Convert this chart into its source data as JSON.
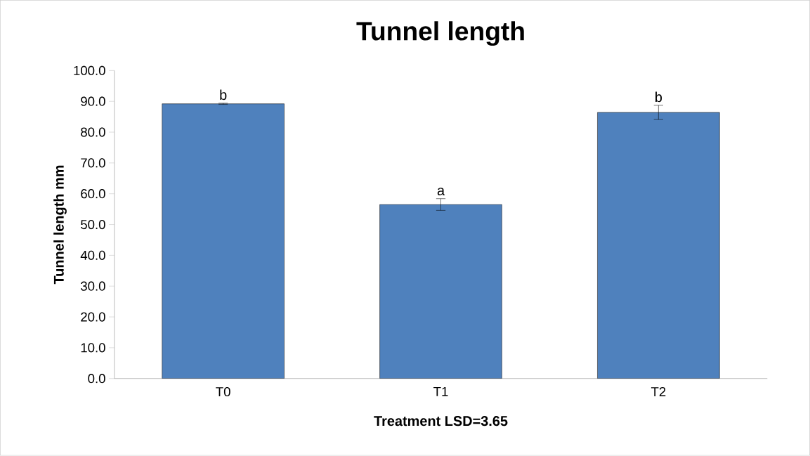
{
  "chart_data": {
    "type": "bar",
    "title": "Tunnel length",
    "xlabel": "Treatment LSD=3.65",
    "ylabel": "Tunnel  length mm",
    "categories": [
      "T0",
      "T1",
      "T2"
    ],
    "values": [
      89.2,
      56.5,
      86.4
    ],
    "errors": [
      0.2,
      1.9,
      2.3
    ],
    "value_labels": [
      "b",
      "a",
      "b"
    ],
    "color": "#4f81bd",
    "ylim": [
      0,
      100
    ],
    "yticks": [
      {
        "value": 0,
        "label": "0.0"
      },
      {
        "value": 10,
        "label": "10.0"
      },
      {
        "value": 20,
        "label": "20.0"
      },
      {
        "value": 30,
        "label": "30.0"
      },
      {
        "value": 40,
        "label": "40.0"
      },
      {
        "value": 50,
        "label": "50.0"
      },
      {
        "value": 60,
        "label": "60.0"
      },
      {
        "value": 70,
        "label": "70.0"
      },
      {
        "value": 80,
        "label": "80.0"
      },
      {
        "value": 90,
        "label": "90.0"
      },
      {
        "value": 100,
        "label": "100.0"
      }
    ]
  }
}
